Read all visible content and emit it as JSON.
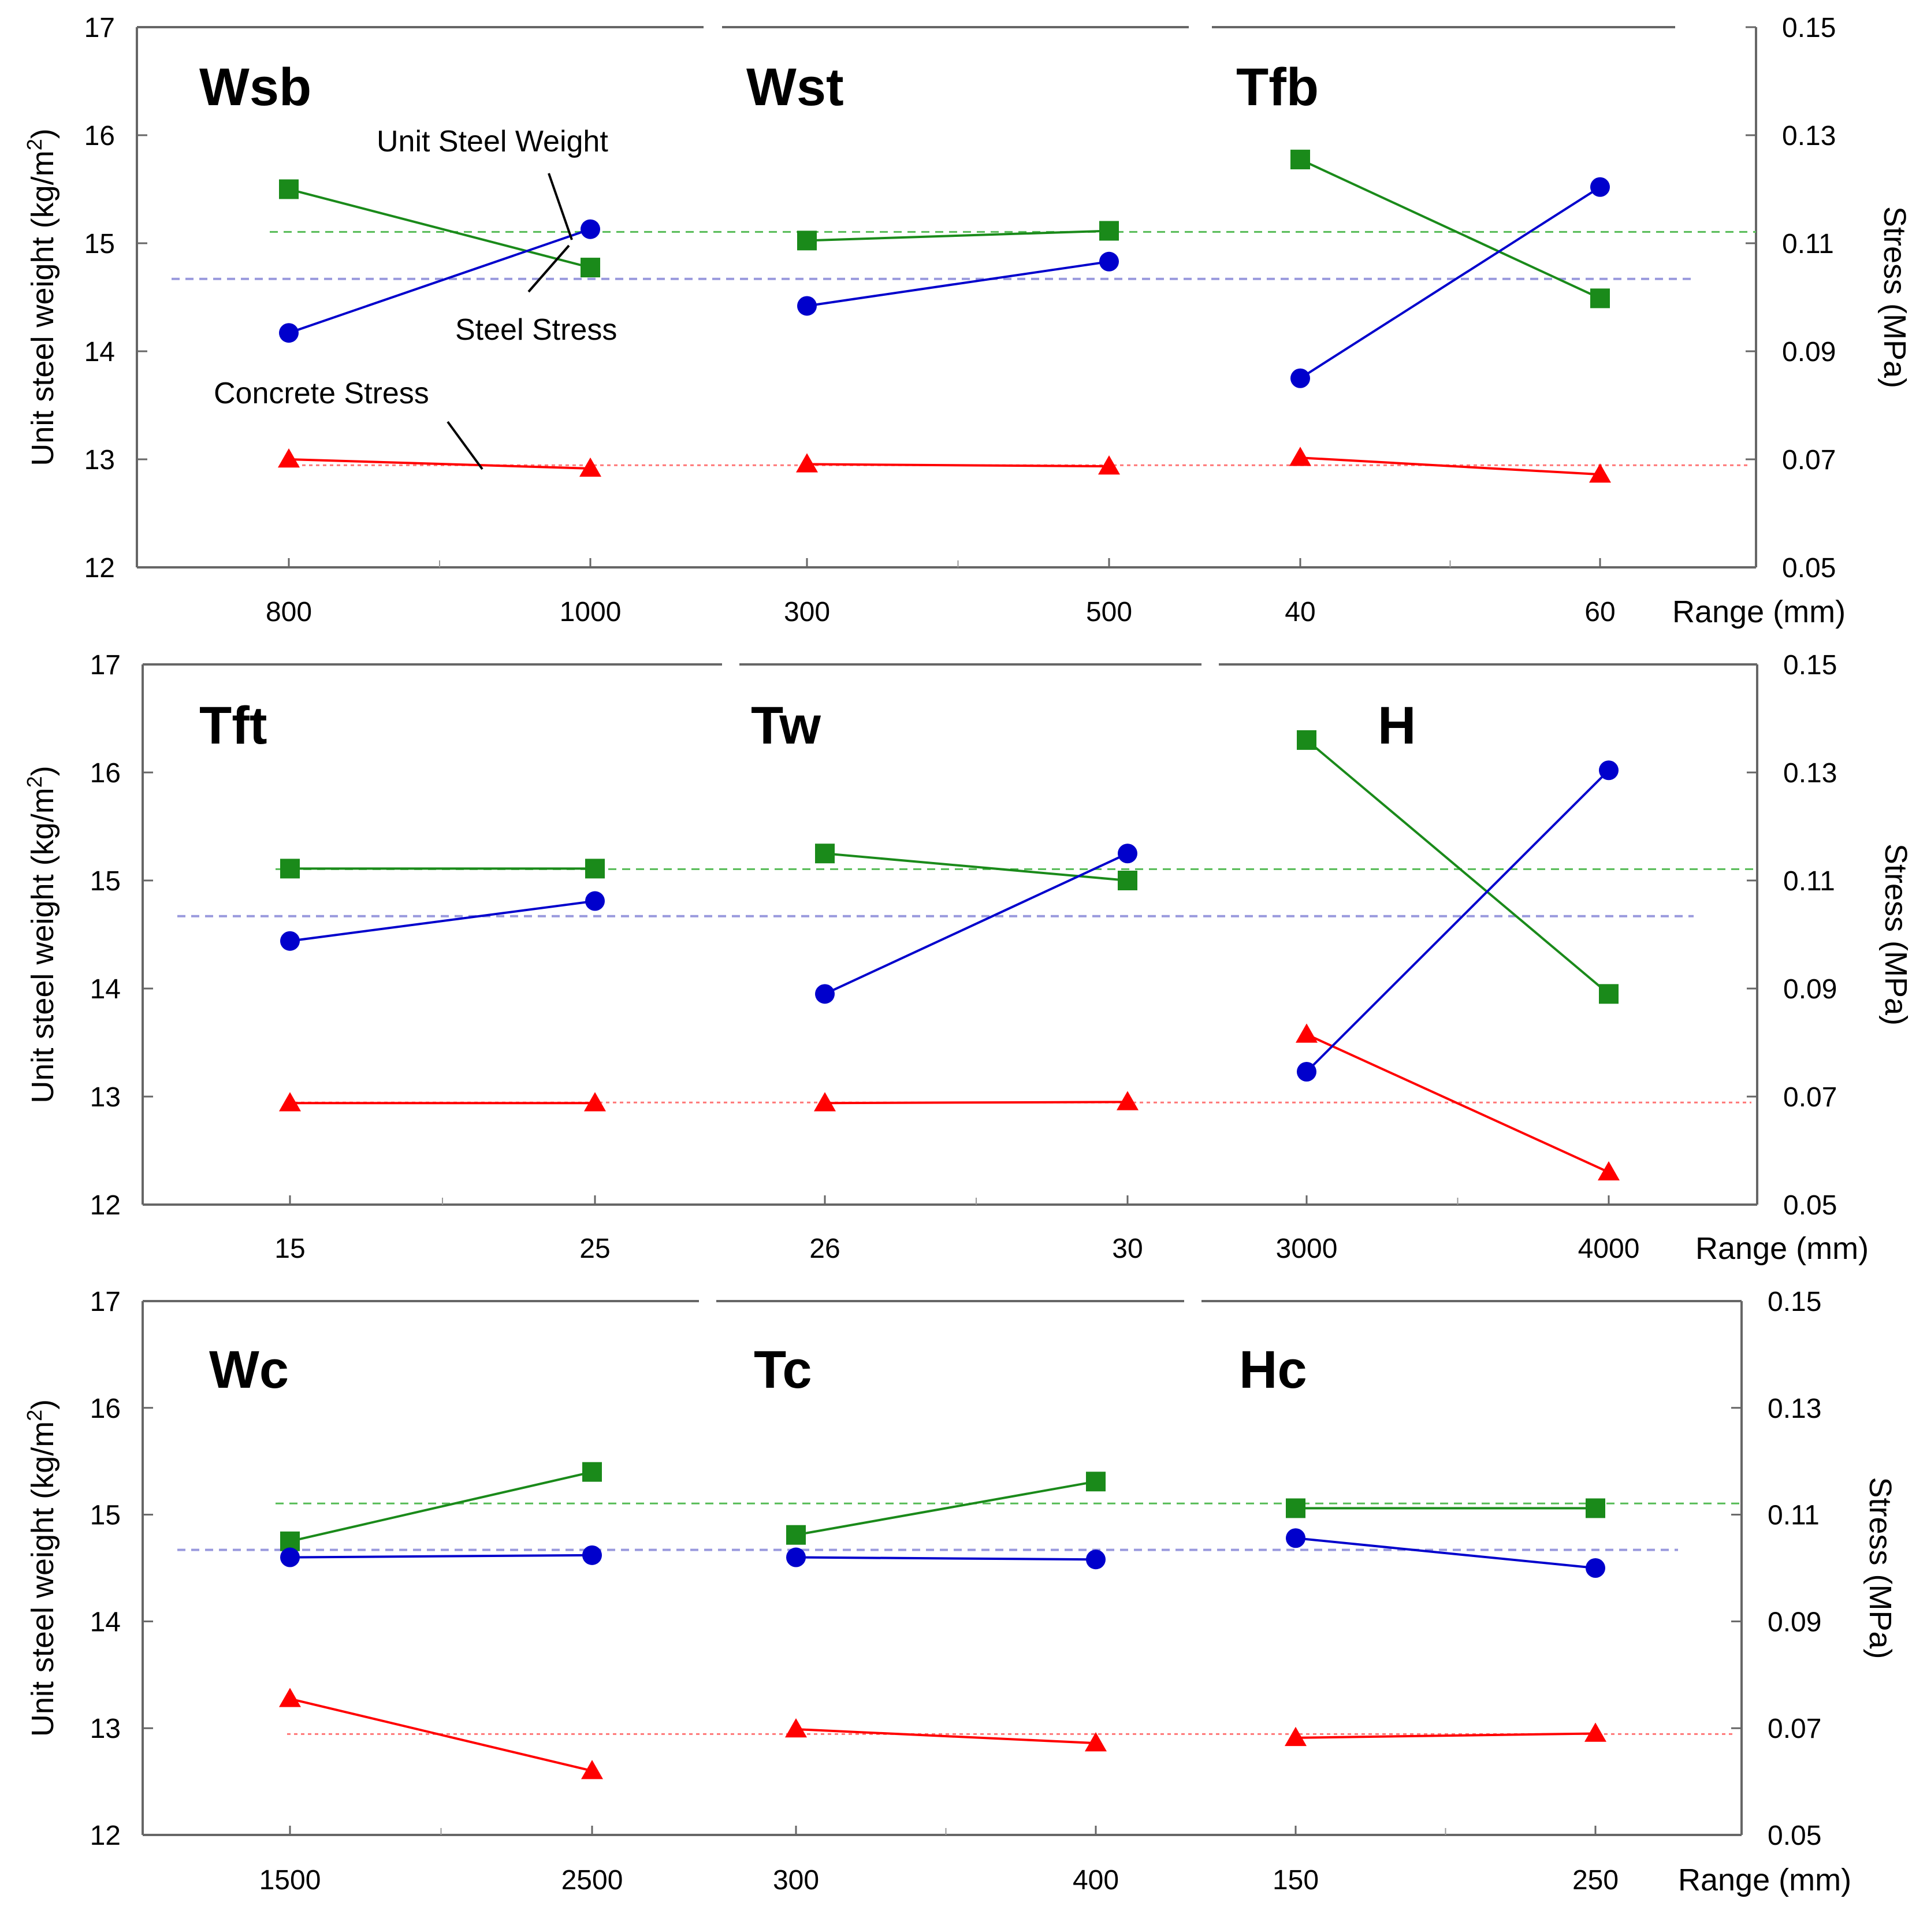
{
  "chart_data": {
    "type": "line",
    "description_labels": {
      "y_left_label": "Unit steel weight (kg/m",
      "y_left_unit_sup": "2",
      "y_left_label_close": ")",
      "y_right_label": "Stress  (MPa)",
      "x_label": "Range  (mm)"
    },
    "y_left_range": [
      12,
      17
    ],
    "y_left_ticks": [
      "12",
      "13",
      "14",
      "15",
      "16",
      "17"
    ],
    "y_right_range": [
      0.05,
      0.15
    ],
    "y_right_ticks": [
      "0.05",
      "0.07",
      "0.09",
      "0.11",
      "0.13",
      "0.15"
    ],
    "mean_lines": {
      "unit_steel_weight": 14.67,
      "steel_stress": 0.1121,
      "concrete_stress": 0.0689
    },
    "series_colors": {
      "unit_steel_weight": "#0000cc",
      "steel_stress": "#1a8a1a",
      "concrete_stress": "#ff0000"
    },
    "annotations": {
      "unit_steel_weight": "Unit Steel Weight",
      "steel_stress": "Steel Stress",
      "concrete_stress": "Concrete Stress"
    },
    "rows": [
      {
        "x_label": "Range  (mm)",
        "panels": [
          {
            "title": "Wsb",
            "ticks": [
              "800",
              "1000"
            ],
            "unit_steel_weight": [
              14.17,
              15.13
            ],
            "steel_stress": [
              0.12,
              0.1055
            ],
            "concrete_stress": [
              0.07,
              0.0683
            ]
          },
          {
            "title": "Wst",
            "ticks": [
              "300",
              "500"
            ],
            "unit_steel_weight": [
              14.42,
              14.83
            ],
            "steel_stress": [
              0.1105,
              0.1123
            ],
            "concrete_stress": [
              0.0691,
              0.0687
            ]
          },
          {
            "title": "Tfb",
            "ticks": [
              "40",
              "60"
            ],
            "unit_steel_weight": [
              13.75,
              15.52
            ],
            "steel_stress": [
              0.1255,
              0.0998
            ],
            "concrete_stress": [
              0.0703,
              0.0672
            ]
          }
        ]
      },
      {
        "x_label": "Range (mm)",
        "panels": [
          {
            "title": "Tft",
            "ticks": [
              "15",
              "25"
            ],
            "unit_steel_weight": [
              14.44,
              14.81
            ],
            "steel_stress": [
              0.1122,
              0.1122
            ],
            "concrete_stress": [
              0.0688,
              0.0688
            ]
          },
          {
            "title": "Tw",
            "ticks": [
              "26",
              "30"
            ],
            "unit_steel_weight": [
              13.95,
              15.25
            ],
            "steel_stress": [
              0.115,
              0.11
            ],
            "concrete_stress": [
              0.0688,
              0.069
            ]
          },
          {
            "title": "H",
            "ticks": [
              "3000",
              "4000"
            ],
            "unit_steel_weight": [
              13.23,
              16.02
            ],
            "steel_stress": [
              0.136,
              0.089
            ],
            "concrete_stress": [
              0.0815,
              0.056
            ]
          }
        ]
      },
      {
        "x_label": "Range  (mm)",
        "panels": [
          {
            "title": "Wc",
            "ticks": [
              "1500",
              "2500"
            ],
            "unit_steel_weight": [
              14.6,
              14.62
            ],
            "steel_stress": [
              0.105,
              0.118
            ],
            "concrete_stress": [
              0.0755,
              0.062
            ]
          },
          {
            "title": "Tc",
            "ticks": [
              "300",
              "400"
            ],
            "unit_steel_weight": [
              14.6,
              14.58
            ],
            "steel_stress": [
              0.1062,
              0.1162
            ],
            "concrete_stress": [
              0.0698,
              0.0672
            ]
          },
          {
            "title": "Hc",
            "ticks": [
              "150",
              "250"
            ],
            "unit_steel_weight": [
              14.78,
              14.5
            ],
            "steel_stress": [
              0.1112,
              0.1112
            ],
            "concrete_stress": [
              0.0682,
              0.069
            ]
          }
        ]
      }
    ]
  }
}
